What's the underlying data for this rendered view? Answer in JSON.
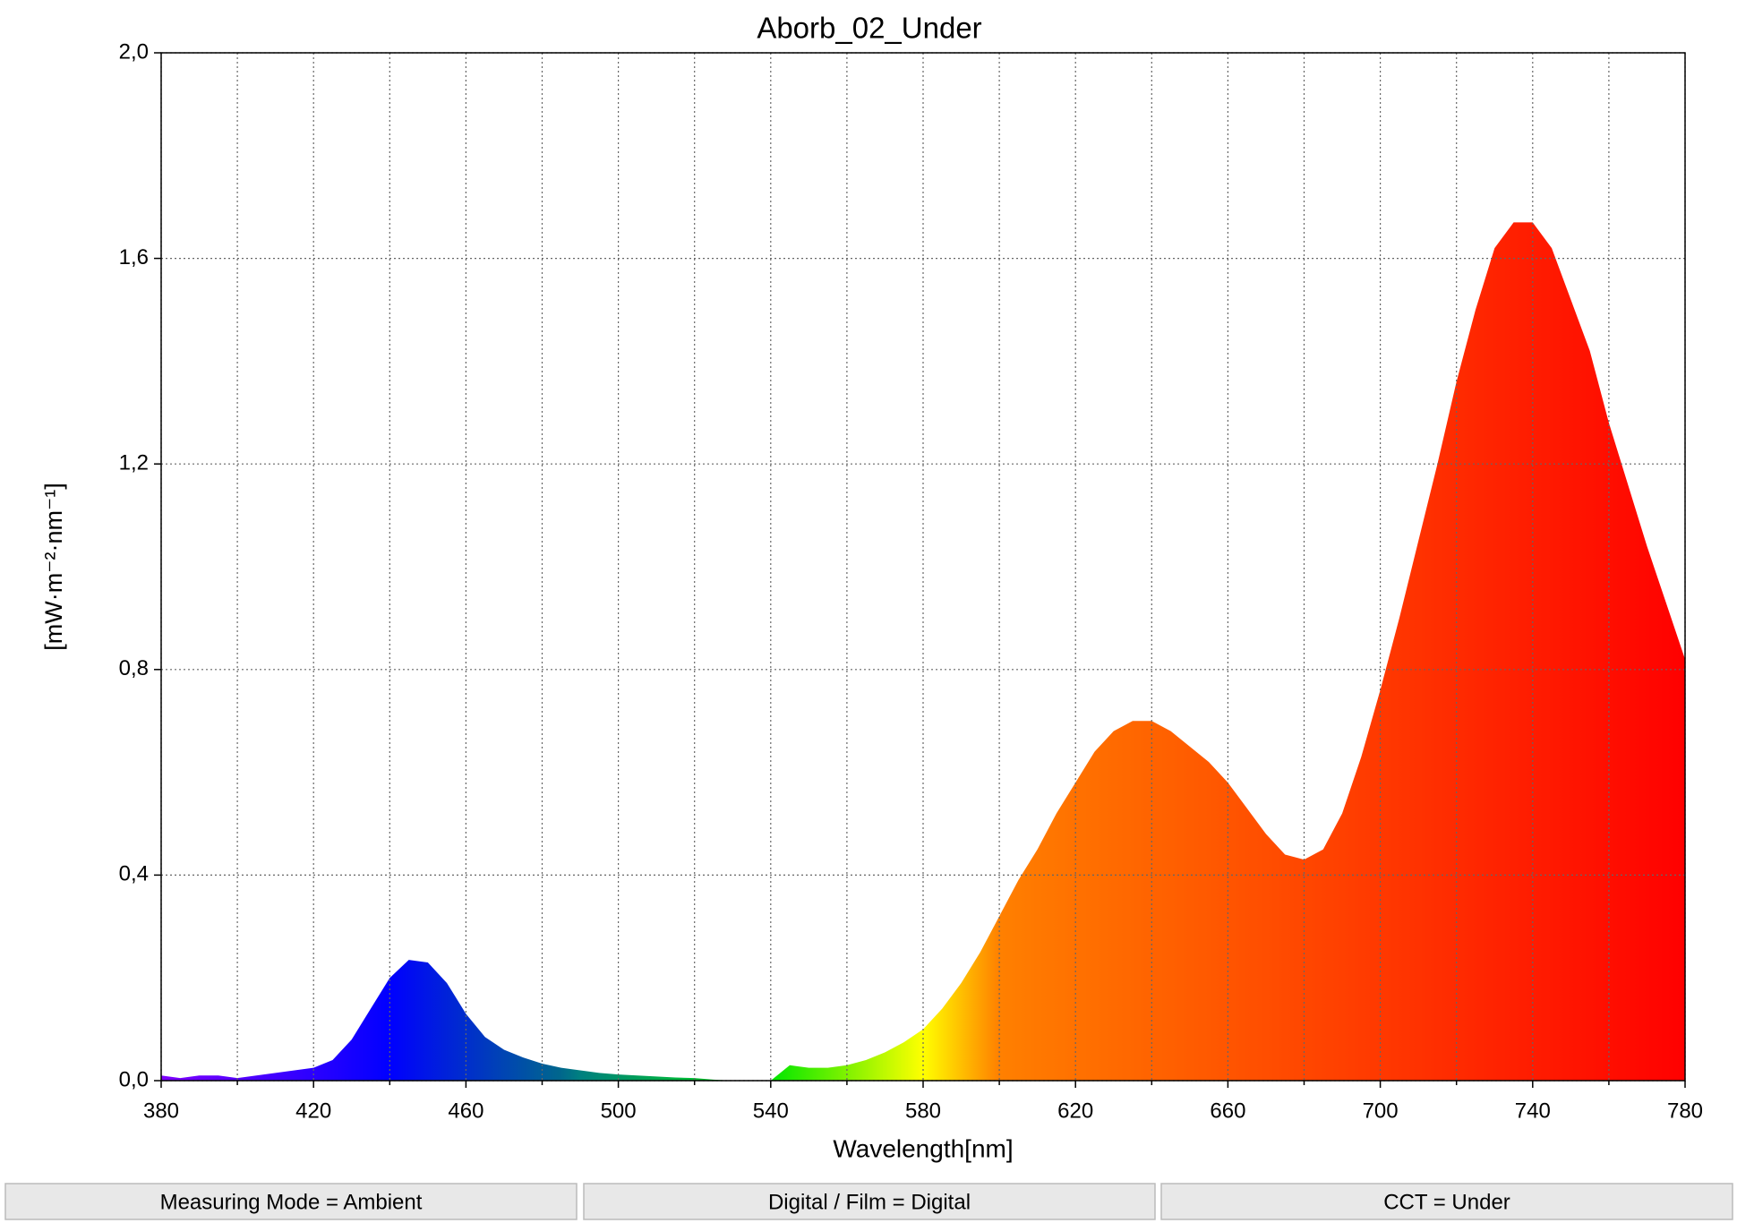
{
  "chart_data": {
    "type": "spectrum",
    "title": "Aborb_02_Under",
    "x_label": "Wavelength[nm]",
    "y_label": "[mW·m⁻²·nm⁻¹]",
    "x": [
      380,
      385,
      390,
      395,
      400,
      405,
      410,
      415,
      420,
      425,
      430,
      435,
      440,
      445,
      450,
      455,
      460,
      465,
      470,
      475,
      480,
      485,
      490,
      495,
      500,
      505,
      510,
      515,
      520,
      525,
      530,
      535,
      540,
      545,
      550,
      555,
      560,
      565,
      570,
      575,
      580,
      585,
      590,
      595,
      600,
      605,
      610,
      615,
      620,
      625,
      630,
      635,
      640,
      645,
      650,
      655,
      660,
      665,
      670,
      675,
      680,
      685,
      690,
      695,
      700,
      705,
      710,
      715,
      720,
      725,
      730,
      735,
      740,
      745,
      750,
      755,
      760,
      765,
      770,
      775,
      780
    ],
    "values": [
      0.01,
      0.005,
      0.01,
      0.01,
      0.005,
      0.01,
      0.015,
      0.02,
      0.025,
      0.04,
      0.08,
      0.14,
      0.2,
      0.235,
      0.23,
      0.19,
      0.13,
      0.085,
      0.06,
      0.045,
      0.033,
      0.025,
      0.02,
      0.015,
      0.012,
      0.01,
      0.008,
      0.006,
      0.005,
      0.002,
      0,
      0,
      0,
      0.03,
      0.025,
      0.025,
      0.03,
      0.04,
      0.055,
      0.075,
      0.1,
      0.14,
      0.19,
      0.25,
      0.32,
      0.39,
      0.45,
      0.52,
      0.58,
      0.64,
      0.68,
      0.7,
      0.7,
      0.68,
      0.65,
      0.62,
      0.58,
      0.53,
      0.48,
      0.44,
      0.43,
      0.45,
      0.52,
      0.63,
      0.76,
      0.9,
      1.05,
      1.2,
      1.36,
      1.5,
      1.62,
      1.67,
      1.67,
      1.62,
      1.52,
      1.42,
      1.28,
      1.16,
      1.04,
      0.93,
      0.82
    ],
    "xlim": [
      380,
      780
    ],
    "xticks": [
      380,
      420,
      460,
      500,
      540,
      580,
      620,
      660,
      700,
      740,
      780
    ],
    "x_minor_grid": [
      400,
      440,
      480,
      520,
      560,
      600,
      640,
      680,
      720,
      760
    ],
    "ylim": [
      0,
      2
    ],
    "yticks": [
      {
        "value": 0,
        "label": "0,0"
      },
      {
        "value": 0.4,
        "label": "0,4"
      },
      {
        "value": 0.8,
        "label": "0,8"
      },
      {
        "value": 1.2,
        "label": "1,2"
      },
      {
        "value": 1.6,
        "label": "1,6"
      },
      {
        "value": 2,
        "label": "2,0"
      }
    ],
    "grid": true,
    "fill": "wavelength"
  },
  "status_bar": [
    "Measuring Mode = Ambient",
    "Digital / Film = Digital",
    "CCT = Under"
  ]
}
